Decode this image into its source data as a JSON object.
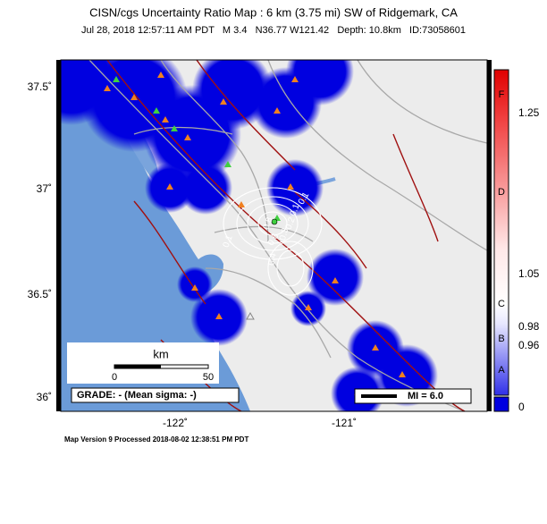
{
  "header": {
    "title": "CISN/cgs Uncertainty Ratio Map : 6 km (3.75 mi) SW of Ridgemark, CA",
    "subtitle": "Jul 28, 2018 12:57:11 AM PDT   M 3.4   N36.77 W121.42   Depth: 10.8km   ID:73058601"
  },
  "map": {
    "lat_labels": [
      "37.5˚",
      "37˚",
      "36.5˚",
      "36˚"
    ],
    "lon_labels": [
      "-122˚",
      "-121˚"
    ],
    "scale_bar": {
      "unit": "km",
      "labels": [
        "0",
        "50"
      ]
    },
    "grade": "GRADE: - (Mean sigma: -)",
    "mi_legend": "MI = 6.0",
    "contour_labels": [
      "0.1",
      "0.1",
      "0.2",
      "0.3",
      "0.4",
      "0.6",
      "0.8",
      "0.1"
    ]
  },
  "colorbar": {
    "grades": [
      "F",
      "D",
      "C",
      "B",
      "A"
    ],
    "ticks": [
      "1.25",
      "1.05",
      "0.98",
      "0.96",
      "0"
    ]
  },
  "footer": "Map Version 9 Processed 2018-08-02 12:38:51 PM PDT"
}
